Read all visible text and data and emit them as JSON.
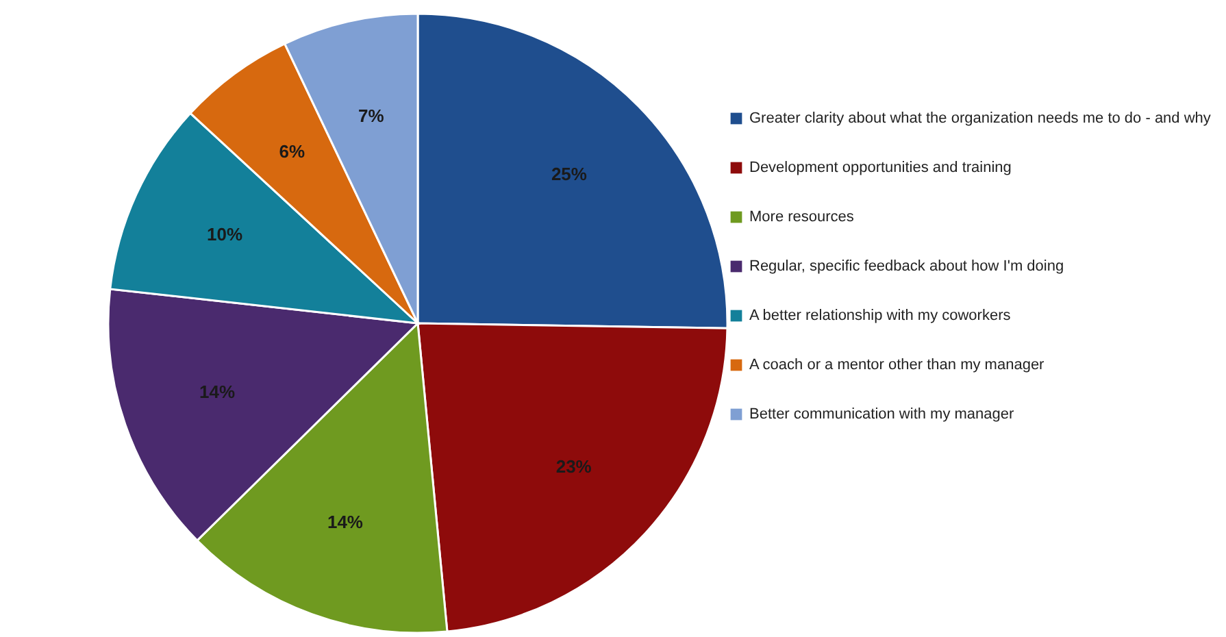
{
  "chart_data": {
    "type": "pie",
    "categories": [
      "Greater clarity about what the organization needs me to do - and why",
      "Development opportunities and training",
      "More resources",
      "Regular, specific feedback about how I'm doing",
      "A better relationship with my coworkers",
      "A coach or a mentor other than my manager",
      "Better communication with my manager"
    ],
    "values": [
      25,
      23,
      14,
      14,
      10,
      6,
      7
    ],
    "colors": [
      "#1f4e8e",
      "#8e0b0b",
      "#6f9a20",
      "#4a2a6e",
      "#13809a",
      "#d7690f",
      "#7f9fd3"
    ],
    "value_labels": [
      "25%",
      "23%",
      "14%",
      "14%",
      "10%",
      "6%",
      "7%"
    ],
    "legend": "right"
  }
}
